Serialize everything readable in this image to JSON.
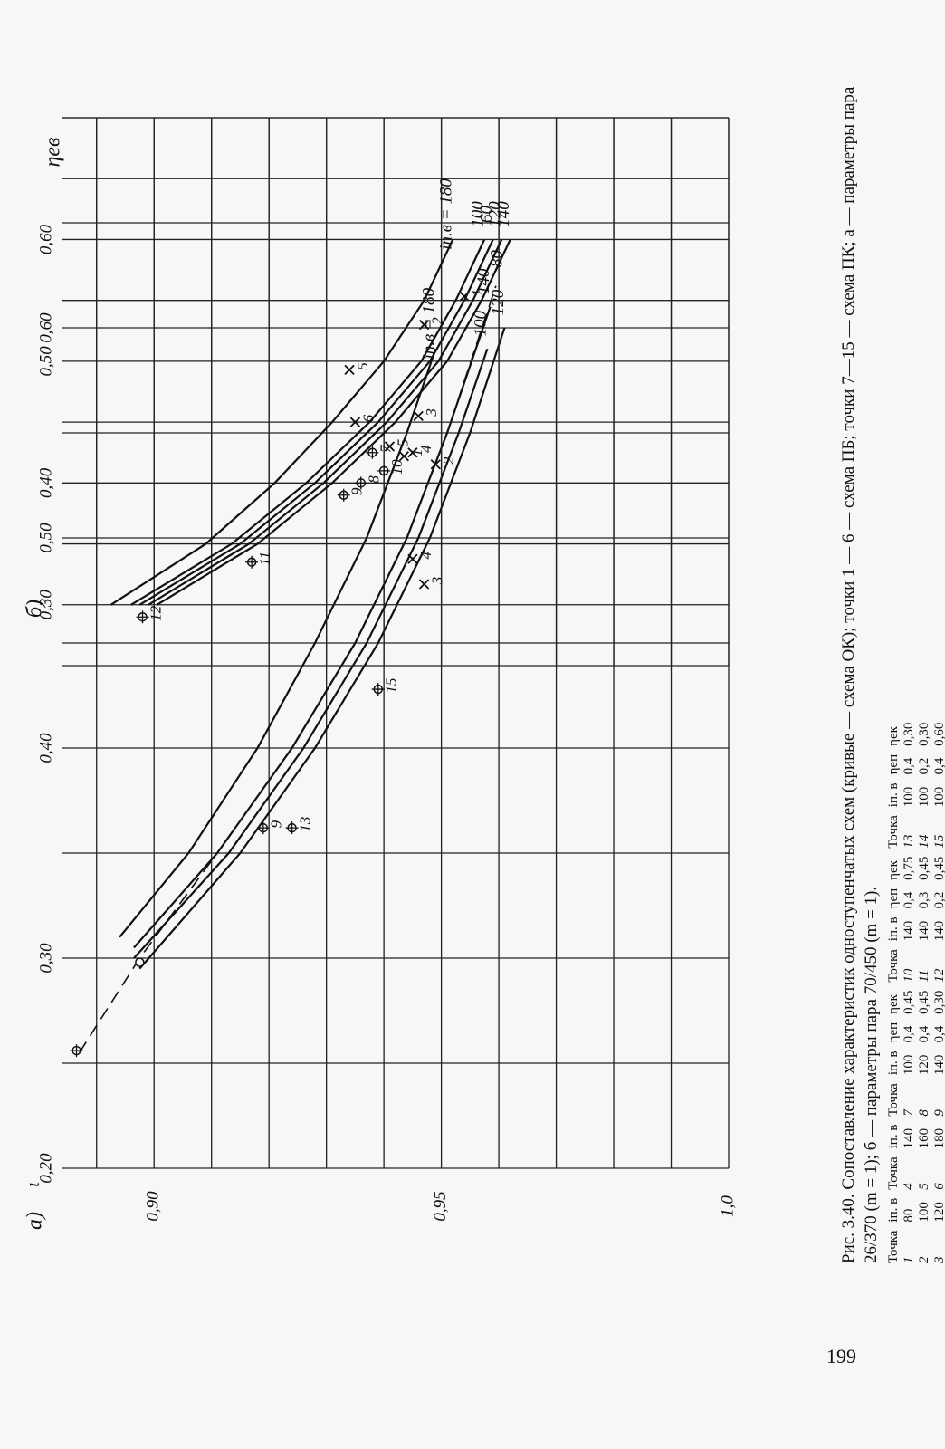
{
  "page": {
    "number": "199"
  },
  "caption": {
    "text": "Рис. 3.40. Сопоставление характеристик одноступенчатых схем (кривые — схема ОК); точки 1 — 6 — схема ПБ; точки 7—15 — схема ПК; а — параметры пара 26/370 (m = 1); б — параметры пара 70/450 (m = 1).",
    "table": {
      "columns": [
        "Точка",
        "iп. в",
        "Точка",
        "iп. в",
        "Точка",
        "iп. в",
        "ηеп",
        "ηек",
        "Точка",
        "iп. в",
        "ηеп",
        "ηек",
        "Точка",
        "iп. в",
        "ηеп",
        "ηек"
      ],
      "rows": [
        [
          "1",
          "80",
          "4",
          "140",
          "7",
          "100",
          "0,4",
          "0,45",
          "10",
          "140",
          "0,4",
          "0,75",
          "13",
          "100",
          "0,4",
          "0,30"
        ],
        [
          "2",
          "100",
          "5",
          "160",
          "8",
          "120",
          "0,4",
          "0,45",
          "11",
          "140",
          "0,3",
          "0,45",
          "14",
          "100",
          "0,2",
          "0,30"
        ],
        [
          "3",
          "120",
          "6",
          "180",
          "9",
          "140",
          "0,4",
          "0,30",
          "12",
          "140",
          "0,2",
          "0,45",
          "15",
          "100",
          "0,4",
          "0,60"
        ]
      ]
    }
  },
  "chart_data": [
    {
      "type": "line",
      "panel_label": "а)",
      "xlabel": "ηев",
      "ylabel": "ι",
      "x_ticks": [
        "0,20",
        "0,30",
        "0,40",
        "0,50",
        "0,60"
      ],
      "y_ticks": [
        "1,0",
        "0,95",
        "0,90"
      ],
      "xlim": [
        0.2,
        0.7
      ],
      "ylim": [
        0.885,
        1.0
      ],
      "grid": true,
      "series": [
        {
          "name": "120",
          "x": [
            0.295,
            0.35,
            0.4,
            0.45,
            0.5,
            0.55,
            0.6
          ],
          "y": [
            0.8975,
            0.915,
            0.928,
            0.939,
            0.948,
            0.955,
            0.961
          ]
        },
        {
          "name": "100",
          "x": [
            0.3,
            0.35,
            0.4,
            0.45,
            0.5,
            0.55,
            0.59
          ],
          "y": [
            0.8965,
            0.913,
            0.926,
            0.937,
            0.946,
            0.953,
            0.958
          ]
        },
        {
          "name": "140",
          "x": [
            0.305,
            0.35,
            0.4,
            0.45,
            0.5,
            0.55,
            0.61
          ],
          "y": [
            0.8965,
            0.911,
            0.924,
            0.935,
            0.944,
            0.951,
            0.9585
          ]
        },
        {
          "name": "iп.в = 180",
          "x": [
            0.31,
            0.35,
            0.4,
            0.45,
            0.5,
            0.55,
            0.59
          ],
          "y": [
            0.894,
            0.906,
            0.918,
            0.928,
            0.937,
            0.944,
            0.949
          ]
        }
      ],
      "dashed_series": {
        "name": "80",
        "x": [
          0.255,
          0.3,
          0.35,
          0.4,
          0.45,
          0.5,
          0.55,
          0.62
        ],
        "y": [
          0.887,
          0.8975,
          0.911,
          0.924,
          0.935,
          0.944,
          0.951,
          0.9595
        ]
      },
      "points": [
        {
          "label": "1",
          "marker": "x",
          "x": 0.615,
          "y": 0.954
        },
        {
          "label": "2",
          "marker": "x",
          "x": 0.535,
          "y": 0.949
        },
        {
          "label": "3",
          "marker": "x",
          "x": 0.478,
          "y": 0.947
        },
        {
          "label": "4",
          "marker": "x",
          "x": 0.49,
          "y": 0.945
        },
        {
          "label": "5",
          "marker": "x",
          "x": 0.58,
          "y": 0.934
        },
        {
          "label": "9",
          "marker": "circle",
          "x": 0.362,
          "y": 0.919
        },
        {
          "label": "13",
          "marker": "circle",
          "x": 0.362,
          "y": 0.924
        },
        {
          "label": "15",
          "marker": "circle",
          "x": 0.428,
          "y": 0.939
        },
        {
          "label": "",
          "marker": "open",
          "x": 0.298,
          "y": 0.8975
        },
        {
          "label": "",
          "marker": "circle",
          "x": 0.256,
          "y": 0.8865
        }
      ]
    },
    {
      "type": "line",
      "panel_label": "б)",
      "xlabel": "ηев",
      "ylabel": "",
      "x_ticks": [
        "0,30",
        "0,40",
        "0,50",
        "0,60"
      ],
      "xlim": [
        0.25,
        0.7
      ],
      "ylim": [
        0.885,
        1.0
      ],
      "grid": true,
      "series": [
        {
          "name": "140",
          "x": [
            0.3,
            0.35,
            0.4,
            0.45,
            0.5,
            0.55,
            0.6
          ],
          "y": [
            0.9005,
            0.918,
            0.931,
            0.942,
            0.951,
            0.957,
            0.962
          ]
        },
        {
          "name": "120",
          "x": [
            0.3,
            0.35,
            0.4,
            0.45,
            0.5,
            0.55,
            0.6
          ],
          "y": [
            0.899,
            0.9165,
            0.9295,
            0.9405,
            0.9495,
            0.9555,
            0.9605
          ]
        },
        {
          "name": "60",
          "x": [
            0.3,
            0.35,
            0.4,
            0.45,
            0.5,
            0.55,
            0.6
          ],
          "y": [
            0.8975,
            0.915,
            0.928,
            0.939,
            0.948,
            0.954,
            0.959
          ]
        },
        {
          "name": "100",
          "x": [
            0.3,
            0.35,
            0.4,
            0.45,
            0.5,
            0.55,
            0.6
          ],
          "y": [
            0.896,
            0.9135,
            0.9265,
            0.9375,
            0.9465,
            0.9525,
            0.9575
          ]
        },
        {
          "name": "iп.в = 180",
          "x": [
            0.3,
            0.35,
            0.4,
            0.45,
            0.5,
            0.55,
            0.6
          ],
          "y": [
            0.8925,
            0.909,
            0.921,
            0.931,
            0.94,
            0.947,
            0.952
          ]
        }
      ],
      "points": [
        {
          "label": "1",
          "marker": "x",
          "x": 0.422,
          "y": 0.9435
        },
        {
          "label": "2",
          "marker": "x",
          "x": 0.53,
          "y": 0.947
        },
        {
          "label": "3",
          "marker": "x",
          "x": 0.455,
          "y": 0.946
        },
        {
          "label": "4",
          "marker": "x",
          "x": 0.425,
          "y": 0.945
        },
        {
          "label": "5",
          "marker": "x",
          "x": 0.43,
          "y": 0.941
        },
        {
          "label": "6",
          "marker": "x",
          "x": 0.45,
          "y": 0.935
        },
        {
          "label": "7",
          "marker": "circle",
          "x": 0.425,
          "y": 0.938
        },
        {
          "label": "8",
          "marker": "circle",
          "x": 0.4,
          "y": 0.936
        },
        {
          "label": "9",
          "marker": "circle",
          "x": 0.39,
          "y": 0.933
        },
        {
          "label": "10",
          "marker": "circle",
          "x": 0.41,
          "y": 0.94
        },
        {
          "label": "11",
          "marker": "circle",
          "x": 0.335,
          "y": 0.917
        },
        {
          "label": "12",
          "marker": "circle",
          "x": 0.29,
          "y": 0.898
        }
      ]
    }
  ]
}
